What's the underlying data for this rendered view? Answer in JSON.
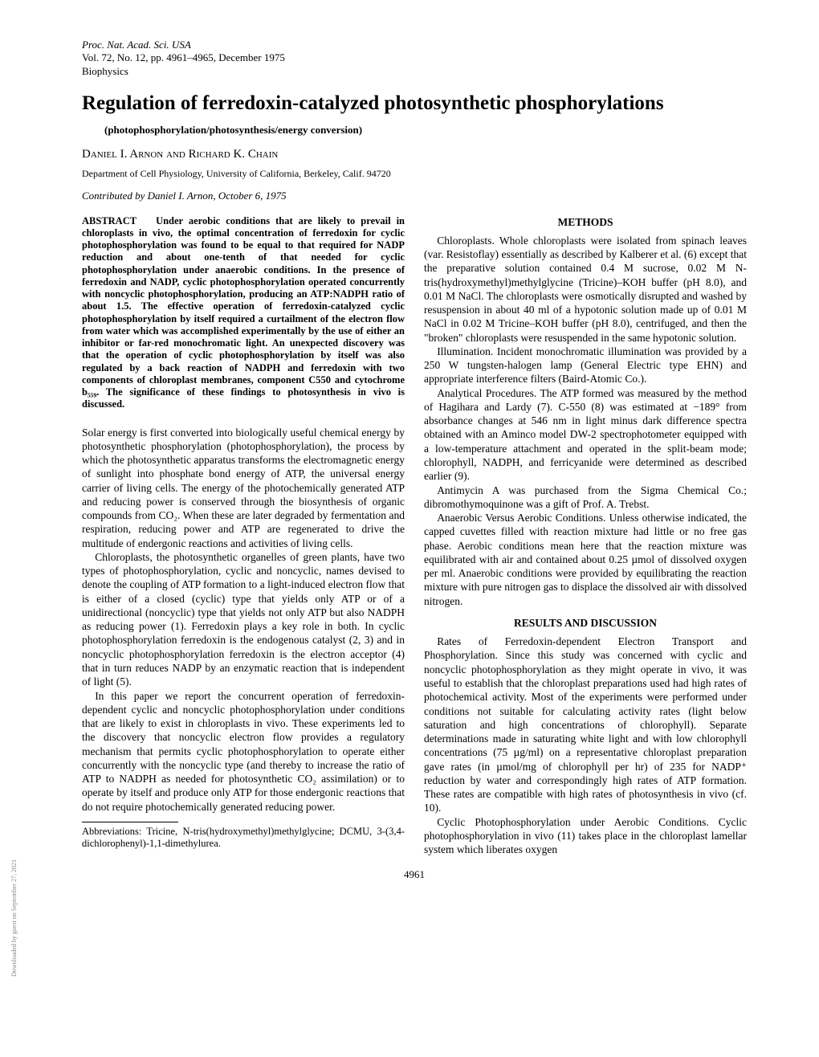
{
  "journal": {
    "line1": "Proc. Nat. Acad. Sci. USA",
    "line2": "Vol. 72, No. 12, pp. 4961–4965, December 1975",
    "line3": "Biophysics"
  },
  "title": "Regulation of ferredoxin-catalyzed photosynthetic phosphorylations",
  "keywords": "(photophosphorylation/photosynthesis/energy conversion)",
  "authors": "Daniel I. Arnon and Richard K. Chain",
  "affiliation": "Department of Cell Physiology, University of California, Berkeley, Calif. 94720",
  "contributed": "Contributed by Daniel I. Arnon, October 6, 1975",
  "abstract": {
    "label": "ABSTRACT",
    "text": "Under aerobic conditions that are likely to prevail in chloroplasts in vivo, the optimal concentration of ferredoxin for cyclic photophosphorylation was found to be equal to that required for NADP reduction and about one-tenth of that needed for cyclic photophosphorylation under anaerobic conditions. In the presence of ferredoxin and NADP, cyclic photophosphorylation operated concurrently with noncyclic photophosphorylation, producing an ATP:NADPH ratio of about 1.5. The effective operation of ferredoxin-catalyzed cyclic photophosphorylation by itself required a curtailment of the electron flow from water which was accomplished experimentally by the use of either an inhibitor or far-red monochromatic light. An unexpected discovery was that the operation of cyclic photophosphorylation by itself was also regulated by a back reaction of NADPH and ferredoxin with two components of chloroplast membranes, component C550 and cytochrome b₅₅₉. The significance of these findings to photosynthesis in vivo is discussed."
  },
  "intro": {
    "p1": "Solar energy is first converted into biologically useful chemical energy by photosynthetic phosphorylation (photophosphorylation), the process by which the photosynthetic apparatus transforms the electromagnetic energy of sunlight into phosphate bond energy of ATP, the universal energy carrier of living cells. The energy of the photochemically generated ATP and reducing power is conserved through the biosynthesis of organic compounds from CO₂. When these are later degraded by fermentation and respiration, reducing power and ATP are regenerated to drive the multitude of endergonic reactions and activities of living cells.",
    "p2": "Chloroplasts, the photosynthetic organelles of green plants, have two types of photophosphorylation, cyclic and noncyclic, names devised to denote the coupling of ATP formation to a light-induced electron flow that is either of a closed (cyclic) type that yields only ATP or of a unidirectional (noncyclic) type that yields not only ATP but also NADPH as reducing power (1). Ferredoxin plays a key role in both. In cyclic photophosphorylation ferredoxin is the endogenous catalyst (2, 3) and in noncyclic photophosphorylation ferredoxin is the electron acceptor (4) that in turn reduces NADP by an enzymatic reaction that is independent of light (5).",
    "p3": "In this paper we report the concurrent operation of ferredoxin-dependent cyclic and noncyclic photophosphorylation under conditions that are likely to exist in chloroplasts in vivo. These experiments led to the discovery that noncyclic electron flow provides a regulatory mechanism that permits cyclic photophosphorylation to operate either concurrently with the noncyclic type (and thereby to increase the ratio of ATP to NADPH as needed for photosynthetic CO₂ assimilation) or to operate by itself and produce only ATP for those endergonic reactions that do not require photochemically generated reducing power."
  },
  "methods": {
    "heading": "METHODS",
    "p1": "Chloroplasts. Whole chloroplasts were isolated from spinach leaves (var. Resistoflay) essentially as described by Kalberer et al. (6) except that the preparative solution contained 0.4 M sucrose, 0.02 M N-tris(hydroxymethyl)methylglycine (Tricine)–KOH buffer (pH 8.0), and 0.01 M NaCl. The chloroplasts were osmotically disrupted and washed by resuspension in about 40 ml of a hypotonic solution made up of 0.01 M NaCl in 0.02 M Tricine–KOH buffer (pH 8.0), centrifuged, and then the \"broken\" chloroplasts were resuspended in the same hypotonic solution.",
    "p2": "Illumination. Incident monochromatic illumination was provided by a 250 W tungsten-halogen lamp (General Electric type EHN) and appropriate interference filters (Baird-Atomic Co.).",
    "p3": "Analytical Procedures. The ATP formed was measured by the method of Hagihara and Lardy (7). C-550 (8) was estimated at −189° from absorbance changes at 546 nm in light minus dark difference spectra obtained with an Aminco model DW-2 spectrophotometer equipped with a low-temperature attachment and operated in the split-beam mode; chlorophyll, NADPH, and ferricyanide were determined as described earlier (9).",
    "p4": "Antimycin A was purchased from the Sigma Chemical Co.; dibromothymoquinone was a gift of Prof. A. Trebst.",
    "p5": "Anaerobic Versus Aerobic Conditions. Unless otherwise indicated, the capped cuvettes filled with reaction mixture had little or no free gas phase. Aerobic conditions mean here that the reaction mixture was equilibrated with air and contained about 0.25 µmol of dissolved oxygen per ml. Anaerobic conditions were provided by equilibrating the reaction mixture with pure nitrogen gas to displace the dissolved air with dissolved nitrogen."
  },
  "results": {
    "heading": "RESULTS AND DISCUSSION",
    "p1": "Rates of Ferredoxin-dependent Electron Transport and Phosphorylation. Since this study was concerned with cyclic and noncyclic photophosphorylation as they might operate in vivo, it was useful to establish that the chloroplast preparations used had high rates of photochemical activity. Most of the experiments were performed under conditions not suitable for calculating activity rates (light below saturation and high concentrations of chlorophyll). Separate determinations made in saturating white light and with low chlorophyll concentrations (75 µg/ml) on a representative chloroplast preparation gave rates (in µmol/mg of chlorophyll per hr) of 235 for NADP⁺ reduction by water and correspondingly high rates of ATP formation. These rates are compatible with high rates of photosynthesis in vivo (cf. 10).",
    "p2": "Cyclic Photophosphorylation under Aerobic Conditions. Cyclic photophosphorylation in vivo (11) takes place in the chloroplast lamellar system which liberates oxygen"
  },
  "footnote": "Abbreviations: Tricine, N-tris(hydroxymethyl)methylglycine; DCMU, 3-(3,4-dichlorophenyl)-1,1-dimethylurea.",
  "pagenum": "4961",
  "sidetext": "Downloaded by guest on September 27, 2021"
}
